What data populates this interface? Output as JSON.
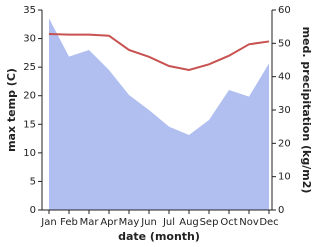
{
  "chart_data": {
    "type": "line_area",
    "categories": [
      "Jan",
      "Feb",
      "Mar",
      "Apr",
      "May",
      "Jun",
      "Jul",
      "Aug",
      "Sep",
      "Oct",
      "Nov",
      "Dec"
    ],
    "x_label": "date (month)",
    "y_label": "max temp (C)",
    "y2_label": "med. precipitation (kg/m2)",
    "ylim": [
      0,
      35
    ],
    "yticks": [
      0,
      5,
      10,
      15,
      20,
      25,
      30,
      35
    ],
    "y2lim": [
      0,
      60
    ],
    "y2ticks": [
      0,
      10,
      20,
      30,
      40,
      50,
      60
    ],
    "series": [
      {
        "name": "max temp",
        "color": "#c85250",
        "values": [
          30.8,
          30.7,
          30.7,
          30.5,
          28.0,
          26.8,
          25.2,
          24.5,
          25.5,
          27.0,
          29.0,
          29.5
        ]
      },
      {
        "name": "med. precipitation",
        "color": "#b0bef0",
        "axis": "y2",
        "values": [
          57.5,
          46,
          48,
          42,
          34.5,
          30,
          25,
          22.5,
          27,
          36,
          34,
          44
        ]
      }
    ]
  }
}
